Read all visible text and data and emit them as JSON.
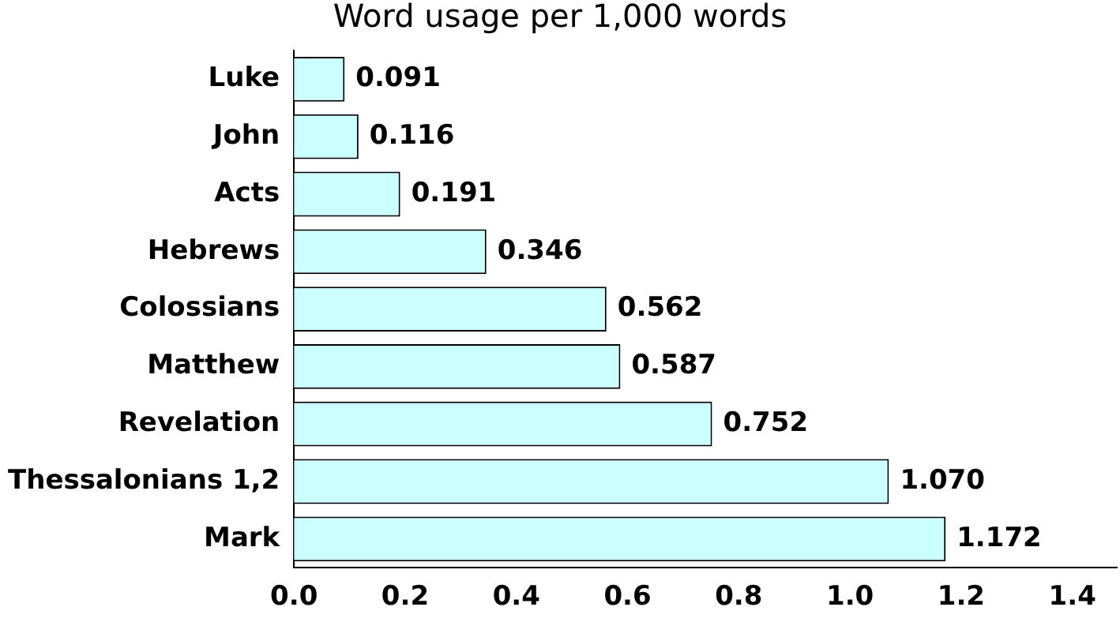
{
  "chart_data": {
    "type": "bar",
    "orientation": "horizontal",
    "title": "Word usage per 1,000 words",
    "categories": [
      "Luke",
      "John",
      "Acts",
      "Hebrews",
      "Colossians",
      "Matthew",
      "Revelation",
      "Thessalonians 1,2",
      "Mark"
    ],
    "values": [
      0.091,
      0.116,
      0.191,
      0.346,
      0.562,
      0.587,
      0.752,
      1.07,
      1.172
    ],
    "value_labels": [
      "0.091",
      "0.116",
      "0.191",
      "0.346",
      "0.562",
      "0.587",
      "0.752",
      "1.070",
      "1.172"
    ],
    "color": "#ccffff",
    "xlim": [
      0,
      1.48
    ],
    "xticks": [
      {
        "value": 0,
        "label": "0.0"
      },
      {
        "value": 0.2,
        "label": "0.2"
      },
      {
        "value": 0.4,
        "label": "0.4"
      },
      {
        "value": 0.6,
        "label": "0.6"
      },
      {
        "value": 0.8,
        "label": "0.8"
      },
      {
        "value": 1.0,
        "label": "1.0"
      },
      {
        "value": 1.2,
        "label": "1.2"
      },
      {
        "value": 1.4,
        "label": "1.4"
      }
    ],
    "grid": false,
    "legend": false
  }
}
